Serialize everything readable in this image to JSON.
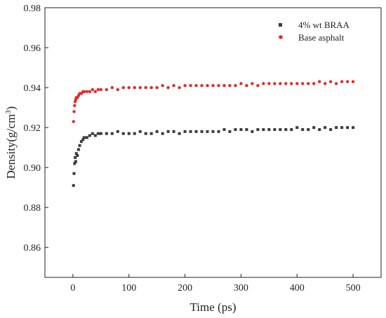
{
  "chart_data": {
    "type": "scatter",
    "title": "",
    "xlabel": "Time (ps)",
    "ylabel_main": "Density(g/cm",
    "ylabel_sup": "3",
    "ylabel_close": ")",
    "xlim": [
      -50,
      550
    ],
    "ylim": [
      0.845,
      0.98
    ],
    "xticks": [
      0,
      100,
      200,
      300,
      400,
      500
    ],
    "xtick_labels": [
      "0",
      "100",
      "200",
      "300",
      "400",
      "500"
    ],
    "yticks": [
      0.86,
      0.88,
      0.9,
      0.92,
      0.94,
      0.96,
      0.98
    ],
    "ytick_labels": [
      "0.86",
      "0.88",
      "0.90",
      "0.92",
      "0.94",
      "0.96",
      "0.98"
    ],
    "grid": false,
    "legend_position": "top-right",
    "series": [
      {
        "name": "4% wt BRAA",
        "marker": "square",
        "color": "#3a3a3a",
        "x": [
          1,
          2,
          3,
          4,
          5,
          6,
          8,
          10,
          12,
          15,
          18,
          20,
          25,
          30,
          35,
          40,
          45,
          50,
          60,
          70,
          80,
          90,
          100,
          110,
          120,
          130,
          140,
          150,
          160,
          170,
          180,
          190,
          200,
          210,
          220,
          230,
          240,
          250,
          260,
          270,
          280,
          290,
          300,
          310,
          320,
          330,
          340,
          350,
          360,
          370,
          380,
          390,
          400,
          410,
          420,
          430,
          440,
          450,
          460,
          470,
          480,
          490,
          500
        ],
        "y": [
          0.891,
          0.897,
          0.902,
          0.905,
          0.903,
          0.907,
          0.906,
          0.909,
          0.911,
          0.913,
          0.914,
          0.915,
          0.915,
          0.916,
          0.917,
          0.916,
          0.917,
          0.917,
          0.917,
          0.917,
          0.918,
          0.917,
          0.917,
          0.917,
          0.918,
          0.917,
          0.917,
          0.918,
          0.917,
          0.918,
          0.918,
          0.917,
          0.918,
          0.918,
          0.918,
          0.918,
          0.918,
          0.918,
          0.918,
          0.919,
          0.918,
          0.919,
          0.919,
          0.919,
          0.918,
          0.919,
          0.919,
          0.919,
          0.919,
          0.919,
          0.919,
          0.919,
          0.92,
          0.919,
          0.919,
          0.92,
          0.919,
          0.92,
          0.919,
          0.92,
          0.92,
          0.92,
          0.92
        ]
      },
      {
        "name": "Base asphalt",
        "marker": "circle",
        "color": "#e8262a",
        "x": [
          1,
          2,
          3,
          4,
          5,
          6,
          8,
          10,
          12,
          15,
          18,
          20,
          25,
          30,
          35,
          40,
          45,
          50,
          60,
          70,
          80,
          90,
          100,
          110,
          120,
          130,
          140,
          150,
          160,
          170,
          180,
          190,
          200,
          210,
          220,
          230,
          240,
          250,
          260,
          270,
          280,
          290,
          300,
          310,
          320,
          330,
          340,
          350,
          360,
          370,
          380,
          390,
          400,
          410,
          420,
          430,
          440,
          450,
          460,
          470,
          480,
          490,
          500
        ],
        "y": [
          0.923,
          0.928,
          0.931,
          0.933,
          0.934,
          0.935,
          0.935,
          0.936,
          0.937,
          0.937,
          0.938,
          0.938,
          0.938,
          0.938,
          0.939,
          0.938,
          0.939,
          0.939,
          0.939,
          0.94,
          0.939,
          0.94,
          0.94,
          0.94,
          0.94,
          0.94,
          0.94,
          0.94,
          0.941,
          0.94,
          0.941,
          0.94,
          0.941,
          0.941,
          0.941,
          0.941,
          0.941,
          0.941,
          0.941,
          0.941,
          0.941,
          0.941,
          0.942,
          0.941,
          0.942,
          0.941,
          0.942,
          0.942,
          0.942,
          0.942,
          0.942,
          0.942,
          0.942,
          0.942,
          0.942,
          0.942,
          0.943,
          0.942,
          0.943,
          0.942,
          0.943,
          0.943,
          0.943
        ]
      }
    ]
  }
}
